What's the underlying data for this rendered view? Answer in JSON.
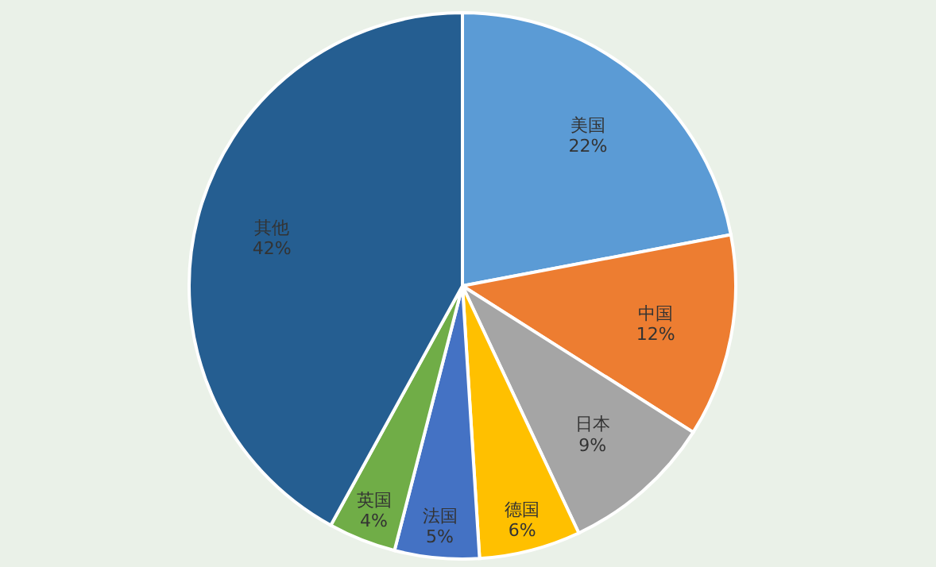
{
  "chart_data": {
    "type": "pie",
    "categories": [
      "美国",
      "中国",
      "日本",
      "德国",
      "法国",
      "英国",
      "其他"
    ],
    "values": [
      22,
      12,
      9,
      6,
      5,
      4,
      42
    ],
    "colors": [
      "#5b9bd5",
      "#ed7d31",
      "#a5a5a5",
      "#ffc000",
      "#4472c4",
      "#70ad47",
      "#255e91"
    ],
    "value_labels": [
      "22%",
      "12%",
      "9%",
      "6%",
      "5%",
      "4%",
      "42%"
    ]
  }
}
